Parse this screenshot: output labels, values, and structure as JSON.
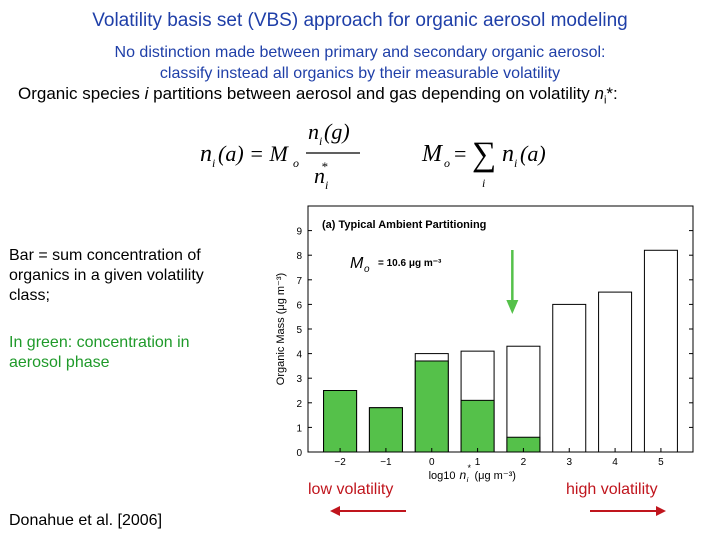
{
  "header": {
    "title": "Volatility basis set (VBS) approach for organic aerosol modeling",
    "subtitle_line1": "No distinction made between primary and secondary organic aerosol:",
    "subtitle_line2": "classify instead all organics by their measurable volatility",
    "line3_text": "Organic species ",
    "line3_i": "i",
    "line3_text2": " partitions between aerosol and gas depending on volatility ",
    "line3_n": "n",
    "line3_sub": "i",
    "line3_end": "*:"
  },
  "equations": {
    "eq1_lhs": "n",
    "eq1_lhs_sub": "i",
    "eq1_lhs_arg": "(a) = M",
    "eq1_M_sub": "o",
    "eq1_num": "n",
    "eq1_num_sub": "i",
    "eq1_num_arg": "(g)",
    "eq1_den": "n",
    "eq1_den_sub": "i",
    "eq1_den_sup": "*",
    "eq2_lhs": "M",
    "eq2_lhs_sub": "o",
    "eq2_eq": "=",
    "eq2_sigma": "∑",
    "eq2_sigma_sub": "i",
    "eq2_rhs": "n",
    "eq2_rhs_sub": "i",
    "eq2_rhs_arg": "(a)"
  },
  "notes": {
    "bar_note": "Bar = sum concentration of organics in a given volatility class;",
    "green_note": "In green: concentration in aerosol phase",
    "credit": "Donahue et al. [2006]",
    "low_label": "low volatility",
    "high_label": "high volatility"
  },
  "colors": {
    "title_blue": "#1f3fa8",
    "aerosol_green": "#55c14a",
    "annotation_red": "#c0151d",
    "note_green": "#1f9a2a"
  },
  "chart_data": {
    "type": "bar",
    "title": "(a) Typical Ambient Partitioning",
    "ylabel": "Organic Mass (μg m⁻³)",
    "xlabel": "log10",
    "xlabel_n": "n",
    "xlabel_sub": "i",
    "xlabel_sup": "*",
    "xlabel_unit": "(μg m⁻³)",
    "mo_label": "M",
    "mo_sub": "o",
    "mo_value": "= 10.6 μg m⁻³",
    "categories": [
      -2,
      -1,
      0,
      1,
      2,
      3,
      4,
      5
    ],
    "series": [
      {
        "values": [
          2.5,
          1.8,
          4.0,
          4.1,
          4.3,
          6.0,
          6.5,
          8.2
        ]
      },
      {
        "values": [
          2.5,
          1.8,
          3.7,
          2.1,
          0.6,
          0,
          0,
          0
        ]
      }
    ],
    "y_ticks": [
      0,
      1,
      2,
      3,
      4,
      5,
      6,
      7,
      8,
      9
    ],
    "ylim": [
      0,
      10
    ],
    "arrow_at_x": 2.5
  }
}
